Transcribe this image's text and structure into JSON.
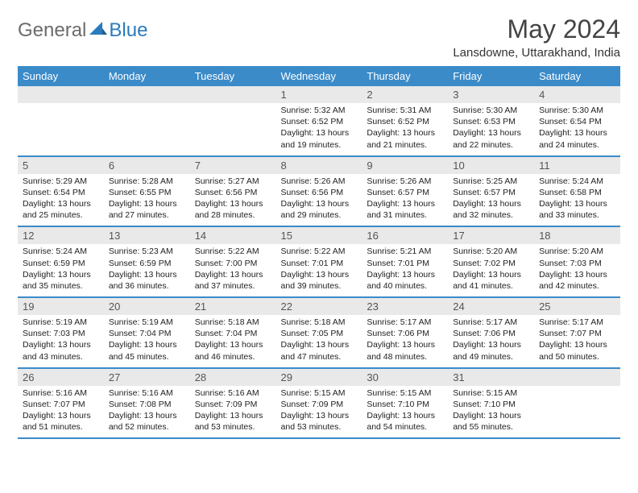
{
  "brand": {
    "g": "General",
    "b": "Blue"
  },
  "title": "May 2024",
  "location": "Lansdowne, Uttarakhand, India",
  "colors": {
    "headerBg": "#3b8bc9",
    "headerText": "#ffffff",
    "dayNumBg": "#e9e9e9",
    "border": "#3b8bc9",
    "logoGray": "#6b6b6b",
    "logoBlue": "#2b7bbd"
  },
  "dayNames": [
    "Sunday",
    "Monday",
    "Tuesday",
    "Wednesday",
    "Thursday",
    "Friday",
    "Saturday"
  ],
  "weeks": [
    [
      null,
      null,
      null,
      {
        "n": "1",
        "sr": "Sunrise: 5:32 AM",
        "ss": "Sunset: 6:52 PM",
        "d1": "Daylight: 13 hours",
        "d2": "and 19 minutes."
      },
      {
        "n": "2",
        "sr": "Sunrise: 5:31 AM",
        "ss": "Sunset: 6:52 PM",
        "d1": "Daylight: 13 hours",
        "d2": "and 21 minutes."
      },
      {
        "n": "3",
        "sr": "Sunrise: 5:30 AM",
        "ss": "Sunset: 6:53 PM",
        "d1": "Daylight: 13 hours",
        "d2": "and 22 minutes."
      },
      {
        "n": "4",
        "sr": "Sunrise: 5:30 AM",
        "ss": "Sunset: 6:54 PM",
        "d1": "Daylight: 13 hours",
        "d2": "and 24 minutes."
      }
    ],
    [
      {
        "n": "5",
        "sr": "Sunrise: 5:29 AM",
        "ss": "Sunset: 6:54 PM",
        "d1": "Daylight: 13 hours",
        "d2": "and 25 minutes."
      },
      {
        "n": "6",
        "sr": "Sunrise: 5:28 AM",
        "ss": "Sunset: 6:55 PM",
        "d1": "Daylight: 13 hours",
        "d2": "and 27 minutes."
      },
      {
        "n": "7",
        "sr": "Sunrise: 5:27 AM",
        "ss": "Sunset: 6:56 PM",
        "d1": "Daylight: 13 hours",
        "d2": "and 28 minutes."
      },
      {
        "n": "8",
        "sr": "Sunrise: 5:26 AM",
        "ss": "Sunset: 6:56 PM",
        "d1": "Daylight: 13 hours",
        "d2": "and 29 minutes."
      },
      {
        "n": "9",
        "sr": "Sunrise: 5:26 AM",
        "ss": "Sunset: 6:57 PM",
        "d1": "Daylight: 13 hours",
        "d2": "and 31 minutes."
      },
      {
        "n": "10",
        "sr": "Sunrise: 5:25 AM",
        "ss": "Sunset: 6:57 PM",
        "d1": "Daylight: 13 hours",
        "d2": "and 32 minutes."
      },
      {
        "n": "11",
        "sr": "Sunrise: 5:24 AM",
        "ss": "Sunset: 6:58 PM",
        "d1": "Daylight: 13 hours",
        "d2": "and 33 minutes."
      }
    ],
    [
      {
        "n": "12",
        "sr": "Sunrise: 5:24 AM",
        "ss": "Sunset: 6:59 PM",
        "d1": "Daylight: 13 hours",
        "d2": "and 35 minutes."
      },
      {
        "n": "13",
        "sr": "Sunrise: 5:23 AM",
        "ss": "Sunset: 6:59 PM",
        "d1": "Daylight: 13 hours",
        "d2": "and 36 minutes."
      },
      {
        "n": "14",
        "sr": "Sunrise: 5:22 AM",
        "ss": "Sunset: 7:00 PM",
        "d1": "Daylight: 13 hours",
        "d2": "and 37 minutes."
      },
      {
        "n": "15",
        "sr": "Sunrise: 5:22 AM",
        "ss": "Sunset: 7:01 PM",
        "d1": "Daylight: 13 hours",
        "d2": "and 39 minutes."
      },
      {
        "n": "16",
        "sr": "Sunrise: 5:21 AM",
        "ss": "Sunset: 7:01 PM",
        "d1": "Daylight: 13 hours",
        "d2": "and 40 minutes."
      },
      {
        "n": "17",
        "sr": "Sunrise: 5:20 AM",
        "ss": "Sunset: 7:02 PM",
        "d1": "Daylight: 13 hours",
        "d2": "and 41 minutes."
      },
      {
        "n": "18",
        "sr": "Sunrise: 5:20 AM",
        "ss": "Sunset: 7:03 PM",
        "d1": "Daylight: 13 hours",
        "d2": "and 42 minutes."
      }
    ],
    [
      {
        "n": "19",
        "sr": "Sunrise: 5:19 AM",
        "ss": "Sunset: 7:03 PM",
        "d1": "Daylight: 13 hours",
        "d2": "and 43 minutes."
      },
      {
        "n": "20",
        "sr": "Sunrise: 5:19 AM",
        "ss": "Sunset: 7:04 PM",
        "d1": "Daylight: 13 hours",
        "d2": "and 45 minutes."
      },
      {
        "n": "21",
        "sr": "Sunrise: 5:18 AM",
        "ss": "Sunset: 7:04 PM",
        "d1": "Daylight: 13 hours",
        "d2": "and 46 minutes."
      },
      {
        "n": "22",
        "sr": "Sunrise: 5:18 AM",
        "ss": "Sunset: 7:05 PM",
        "d1": "Daylight: 13 hours",
        "d2": "and 47 minutes."
      },
      {
        "n": "23",
        "sr": "Sunrise: 5:17 AM",
        "ss": "Sunset: 7:06 PM",
        "d1": "Daylight: 13 hours",
        "d2": "and 48 minutes."
      },
      {
        "n": "24",
        "sr": "Sunrise: 5:17 AM",
        "ss": "Sunset: 7:06 PM",
        "d1": "Daylight: 13 hours",
        "d2": "and 49 minutes."
      },
      {
        "n": "25",
        "sr": "Sunrise: 5:17 AM",
        "ss": "Sunset: 7:07 PM",
        "d1": "Daylight: 13 hours",
        "d2": "and 50 minutes."
      }
    ],
    [
      {
        "n": "26",
        "sr": "Sunrise: 5:16 AM",
        "ss": "Sunset: 7:07 PM",
        "d1": "Daylight: 13 hours",
        "d2": "and 51 minutes."
      },
      {
        "n": "27",
        "sr": "Sunrise: 5:16 AM",
        "ss": "Sunset: 7:08 PM",
        "d1": "Daylight: 13 hours",
        "d2": "and 52 minutes."
      },
      {
        "n": "28",
        "sr": "Sunrise: 5:16 AM",
        "ss": "Sunset: 7:09 PM",
        "d1": "Daylight: 13 hours",
        "d2": "and 53 minutes."
      },
      {
        "n": "29",
        "sr": "Sunrise: 5:15 AM",
        "ss": "Sunset: 7:09 PM",
        "d1": "Daylight: 13 hours",
        "d2": "and 53 minutes."
      },
      {
        "n": "30",
        "sr": "Sunrise: 5:15 AM",
        "ss": "Sunset: 7:10 PM",
        "d1": "Daylight: 13 hours",
        "d2": "and 54 minutes."
      },
      {
        "n": "31",
        "sr": "Sunrise: 5:15 AM",
        "ss": "Sunset: 7:10 PM",
        "d1": "Daylight: 13 hours",
        "d2": "and 55 minutes."
      },
      null
    ]
  ]
}
